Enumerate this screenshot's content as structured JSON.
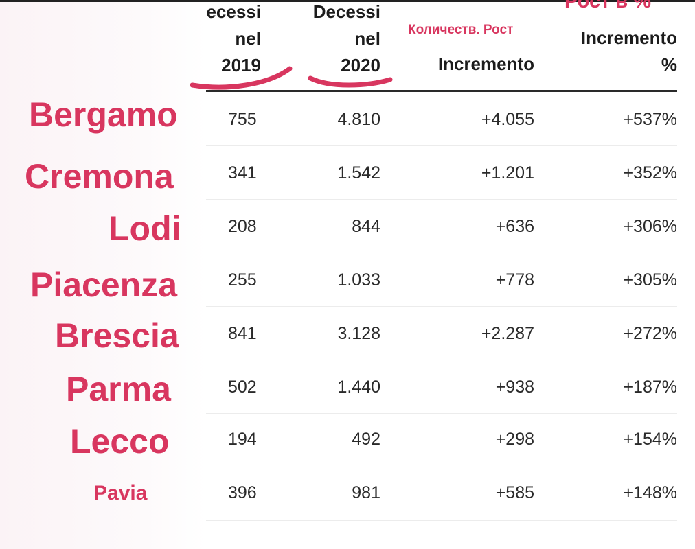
{
  "headers": {
    "col_2019": [
      "ecessi",
      "nel",
      "2019"
    ],
    "col_2020": [
      "Decessi",
      "nel",
      "2020"
    ],
    "col_incr": "Incremento",
    "col_pct": [
      "Incremento",
      "%"
    ]
  },
  "annotations": {
    "count_growth": "Количеств. Рост",
    "pct_growth": "Рост в %"
  },
  "accent_color": "#d8365f",
  "rows": [
    {
      "city": "Bergamo",
      "d2019": "755",
      "d2020": "4.810",
      "incr": "+4.055",
      "pct": "+537%"
    },
    {
      "city": "Cremona",
      "d2019": "341",
      "d2020": "1.542",
      "incr": "+1.201",
      "pct": "+352%"
    },
    {
      "city": "Lodi",
      "d2019": "208",
      "d2020": "844",
      "incr": "+636",
      "pct": "+306%"
    },
    {
      "city": "Piacenza",
      "d2019": "255",
      "d2020": "1.033",
      "incr": "+778",
      "pct": "+305%"
    },
    {
      "city": "Brescia",
      "d2019": "841",
      "d2020": "3.128",
      "incr": "+2.287",
      "pct": "+272%"
    },
    {
      "city": "Parma",
      "d2019": "502",
      "d2020": "1.440",
      "incr": "+938",
      "pct": "+187%"
    },
    {
      "city": "Lecco",
      "d2019": "194",
      "d2020": "492",
      "incr": "+298",
      "pct": "+154%"
    },
    {
      "city": "Pavia",
      "d2019": "396",
      "d2020": "981",
      "incr": "+585",
      "pct": "+148%"
    }
  ]
}
